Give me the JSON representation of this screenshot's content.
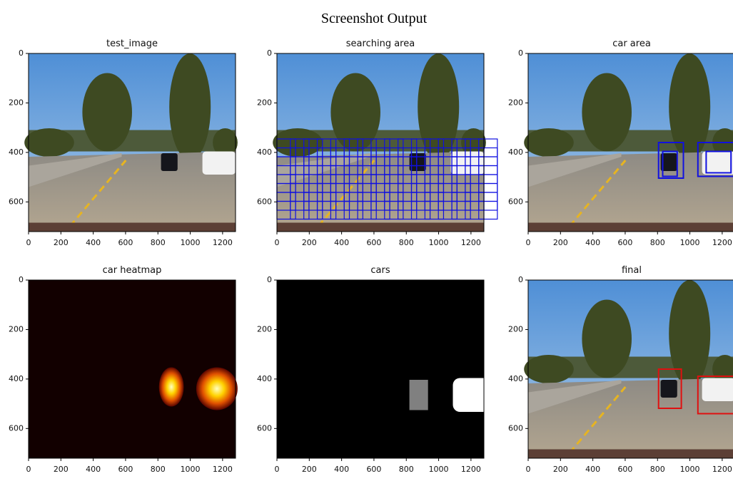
{
  "title": "Screenshot Output",
  "panels": [
    {
      "title": "test_image",
      "xticks": [
        0,
        200,
        400,
        600,
        800,
        1000,
        1200
      ],
      "yticks": [
        0,
        200,
        400,
        600
      ]
    },
    {
      "title": "searching area",
      "xticks": [
        0,
        200,
        400,
        600,
        800,
        1000,
        1200
      ],
      "yticks": [
        0,
        200,
        400,
        600
      ]
    },
    {
      "title": "car area",
      "xticks": [
        0,
        200,
        400,
        600,
        800,
        1000,
        1200
      ],
      "yticks": [
        0,
        200,
        400,
        600
      ]
    },
    {
      "title": "car heatmap",
      "xticks": [
        0,
        200,
        400,
        600,
        800,
        1000,
        1200
      ],
      "yticks": [
        0,
        200,
        400,
        600
      ]
    },
    {
      "title": "cars",
      "xticks": [
        0,
        200,
        400,
        600,
        800,
        1000,
        1200
      ],
      "yticks": [
        0,
        200,
        400,
        600
      ]
    },
    {
      "title": "final",
      "xticks": [
        0,
        200,
        400,
        600,
        800,
        1000,
        1200
      ],
      "yticks": [
        0,
        200,
        400,
        600
      ]
    }
  ]
}
